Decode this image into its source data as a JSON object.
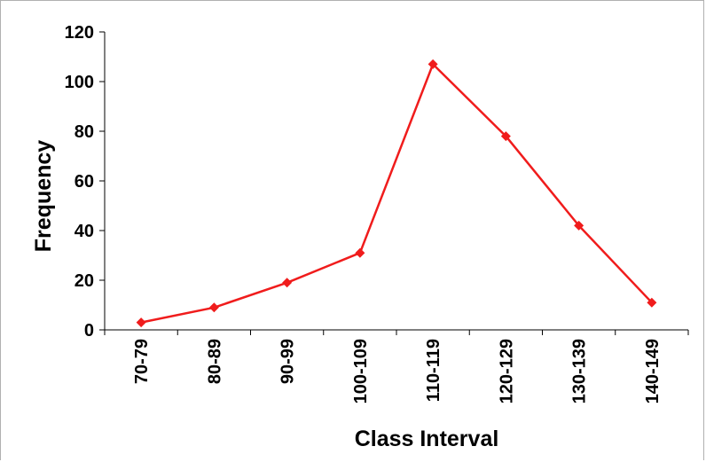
{
  "chart_data": {
    "type": "line",
    "categories": [
      "70-79",
      "80-89",
      "90-99",
      "100-109",
      "110-119",
      "120-129",
      "130-139",
      "140-149"
    ],
    "series": [
      {
        "values": [
          3,
          9,
          19,
          31,
          107,
          78,
          42,
          11
        ],
        "color": "#f01c1c",
        "marker": "diamond"
      }
    ],
    "xlabel": "Class Interval",
    "ylabel": "Frequency",
    "ylim": [
      0,
      120
    ],
    "yticks": [
      "0",
      "20",
      "40",
      "60",
      "80",
      "100",
      "120"
    ],
    "grid": false,
    "legend": "none"
  }
}
